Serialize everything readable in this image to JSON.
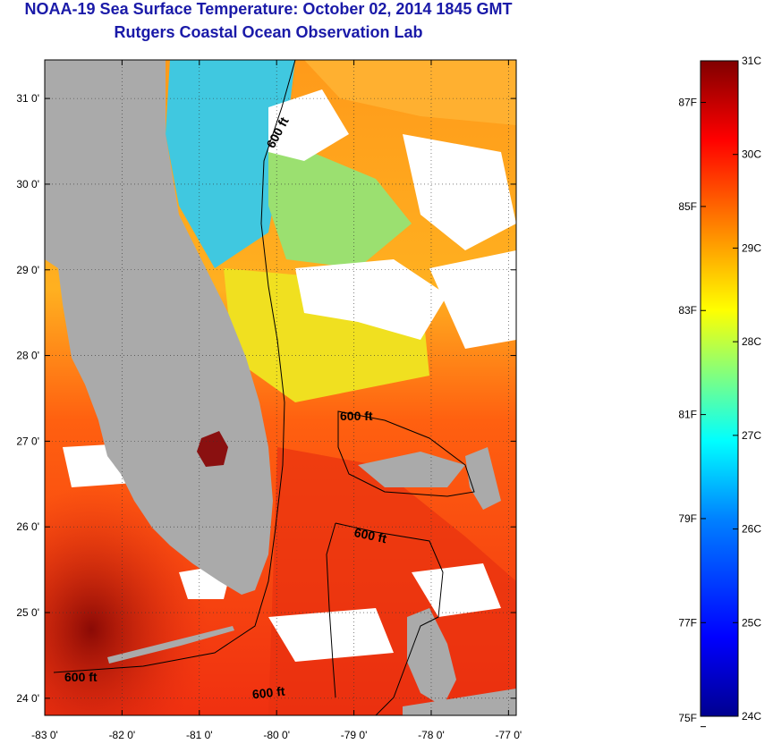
{
  "title": "NOAA-19 Sea Surface Temperature:  October 02, 2014 1845 GMT",
  "subtitle": "Rutgers Coastal Ocean Observation Lab",
  "map": {
    "lat_ticks": [
      "31 0'",
      "30 0'",
      "29 0'",
      "28 0'",
      "27 0'",
      "26 0'",
      "25 0'",
      "24 0'"
    ],
    "lat_values": [
      31,
      30,
      29,
      28,
      27,
      26,
      25,
      24
    ],
    "lon_ticks": [
      "-83 0'",
      "-82 0'",
      "-81 0'",
      "-80 0'",
      "-79 0'",
      "-78 0'",
      "-77 0'"
    ],
    "lon_values": [
      -83,
      -82,
      -81,
      -80,
      -79,
      -78,
      -77
    ],
    "lat_range": [
      23.8,
      31.45
    ],
    "lon_range": [
      -83,
      -76.9
    ],
    "contour_label": "600 ft",
    "contour_depth": "600 ft",
    "land_color": "#aaaaaa",
    "cloud_color": "#ffffff",
    "grid": "dotted"
  },
  "colorbar": {
    "celsius_labels": [
      "31C",
      "30C",
      "29C",
      "28C",
      "27C",
      "26C",
      "25C",
      "24C"
    ],
    "celsius_values": [
      31,
      30,
      29,
      28,
      27,
      26,
      25,
      24
    ],
    "fahrenheit_labels": [
      "87F",
      "85F",
      "83F",
      "81F",
      "79F",
      "77F",
      "75F"
    ],
    "fahrenheit_values": [
      87,
      85,
      83,
      81,
      79,
      77,
      75
    ],
    "range_c": [
      24,
      31
    ],
    "colormap": "jet",
    "stops": [
      "#00008f",
      "#0000ff",
      "#0080ff",
      "#00ffff",
      "#80ff80",
      "#ffff00",
      "#ff8000",
      "#ff0000",
      "#800000"
    ]
  }
}
